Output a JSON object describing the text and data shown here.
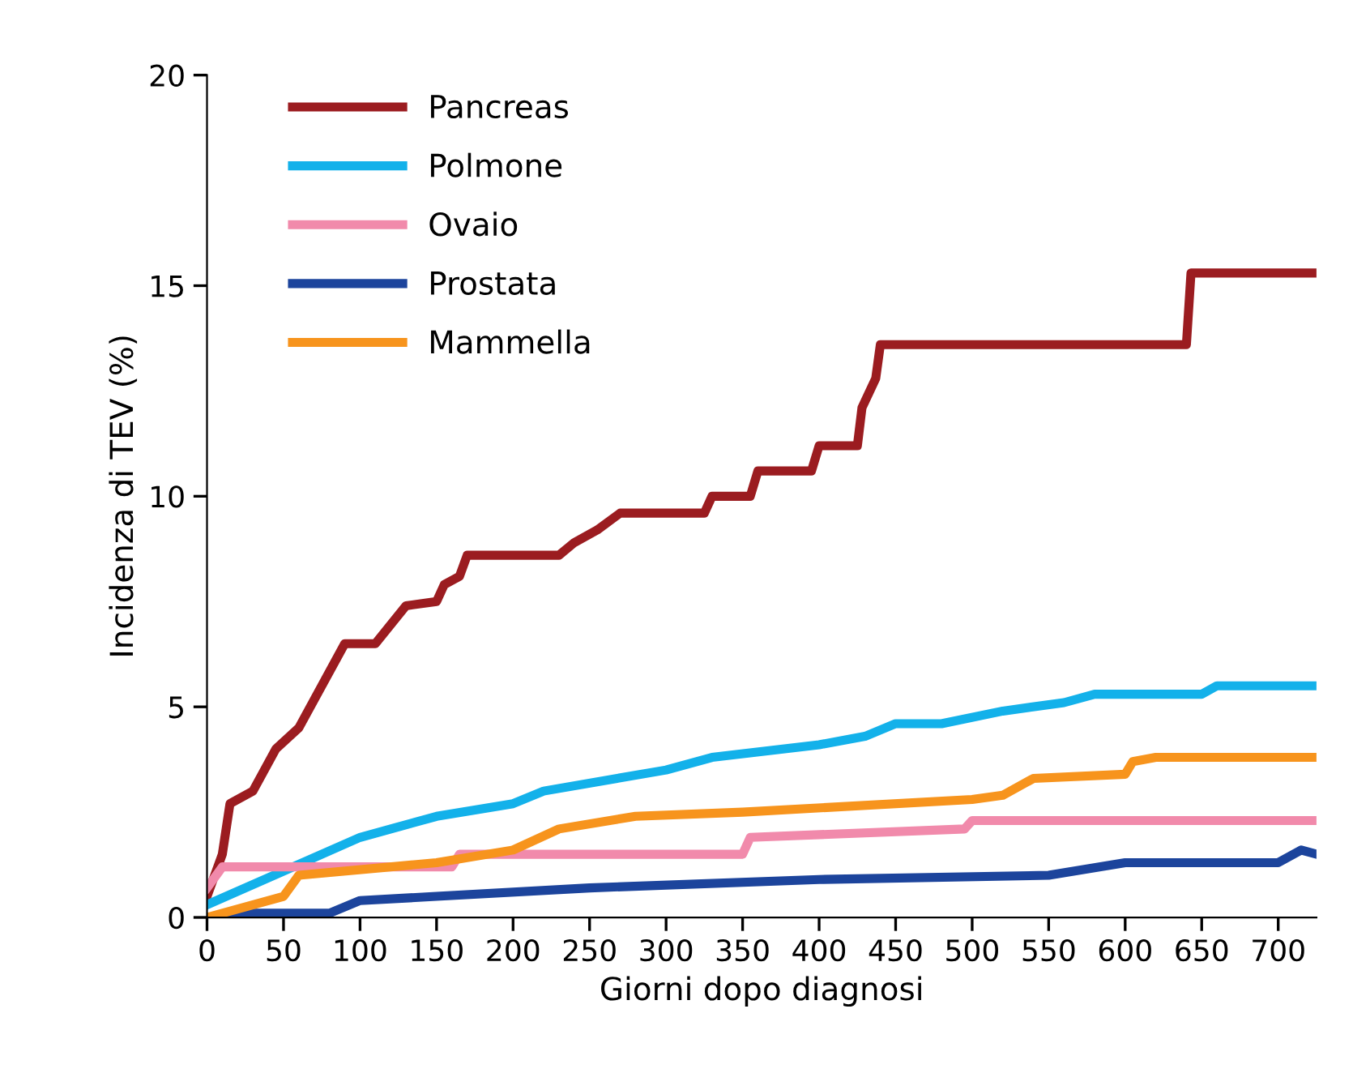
{
  "chart_data": {
    "type": "line",
    "xlabel": "Giorni dopo diagnosi",
    "ylabel": "Incidenza di TEV (%)",
    "xlim": [
      0,
      725
    ],
    "xticks": [
      0,
      50,
      100,
      150,
      200,
      250,
      300,
      350,
      400,
      450,
      500,
      550,
      600,
      650,
      700
    ],
    "ylim": [
      0,
      20
    ],
    "yticks": [
      0,
      5,
      10,
      15,
      20
    ],
    "grid": false,
    "legend": "top left",
    "marker": "none",
    "line_style": "solid",
    "series": [
      {
        "name": "Pancreas",
        "color": "#9b1c20",
        "x": [
          0,
          10,
          15,
          30,
          45,
          60,
          90,
          110,
          130,
          150,
          155,
          165,
          170,
          230,
          240,
          255,
          270,
          325,
          330,
          355,
          360,
          395,
          400,
          425,
          428,
          437,
          440,
          640,
          643,
          725
        ],
        "values": [
          0.5,
          1.5,
          2.7,
          3.0,
          4.0,
          4.5,
          6.5,
          6.5,
          7.4,
          7.5,
          7.9,
          8.1,
          8.6,
          8.6,
          8.9,
          9.2,
          9.6,
          9.6,
          10.0,
          10.0,
          10.6,
          10.6,
          11.2,
          11.2,
          12.1,
          12.8,
          13.6,
          13.6,
          15.3,
          15.3
        ]
      },
      {
        "name": "Polmone",
        "color": "#13b1ea",
        "x": [
          0,
          50,
          100,
          150,
          200,
          220,
          300,
          330,
          400,
          430,
          450,
          480,
          520,
          560,
          580,
          650,
          660,
          725
        ],
        "values": [
          0.3,
          1.1,
          1.9,
          2.4,
          2.7,
          3.0,
          3.5,
          3.8,
          4.1,
          4.3,
          4.6,
          4.6,
          4.9,
          5.1,
          5.3,
          5.3,
          5.5,
          5.5
        ]
      },
      {
        "name": "Ovaio",
        "color": "#f18aab",
        "x": [
          0,
          10,
          160,
          165,
          350,
          355,
          495,
          500,
          725
        ],
        "values": [
          0.7,
          1.2,
          1.2,
          1.5,
          1.5,
          1.9,
          2.1,
          2.3,
          2.3
        ]
      },
      {
        "name": "Prostata",
        "color": "#1c449c",
        "x": [
          0,
          20,
          30,
          80,
          100,
          150,
          250,
          400,
          550,
          600,
          650,
          700,
          715,
          725
        ],
        "values": [
          0,
          0,
          0.1,
          0.1,
          0.4,
          0.5,
          0.7,
          0.9,
          1.0,
          1.3,
          1.3,
          1.3,
          1.6,
          1.5
        ]
      },
      {
        "name": "Mammella",
        "color": "#f7941d",
        "x": [
          0,
          50,
          60,
          150,
          200,
          230,
          280,
          350,
          500,
          520,
          540,
          600,
          605,
          620,
          725
        ],
        "values": [
          0,
          0.5,
          1.0,
          1.3,
          1.6,
          2.1,
          2.4,
          2.5,
          2.8,
          2.9,
          3.3,
          3.4,
          3.7,
          3.8,
          3.8
        ]
      }
    ]
  }
}
